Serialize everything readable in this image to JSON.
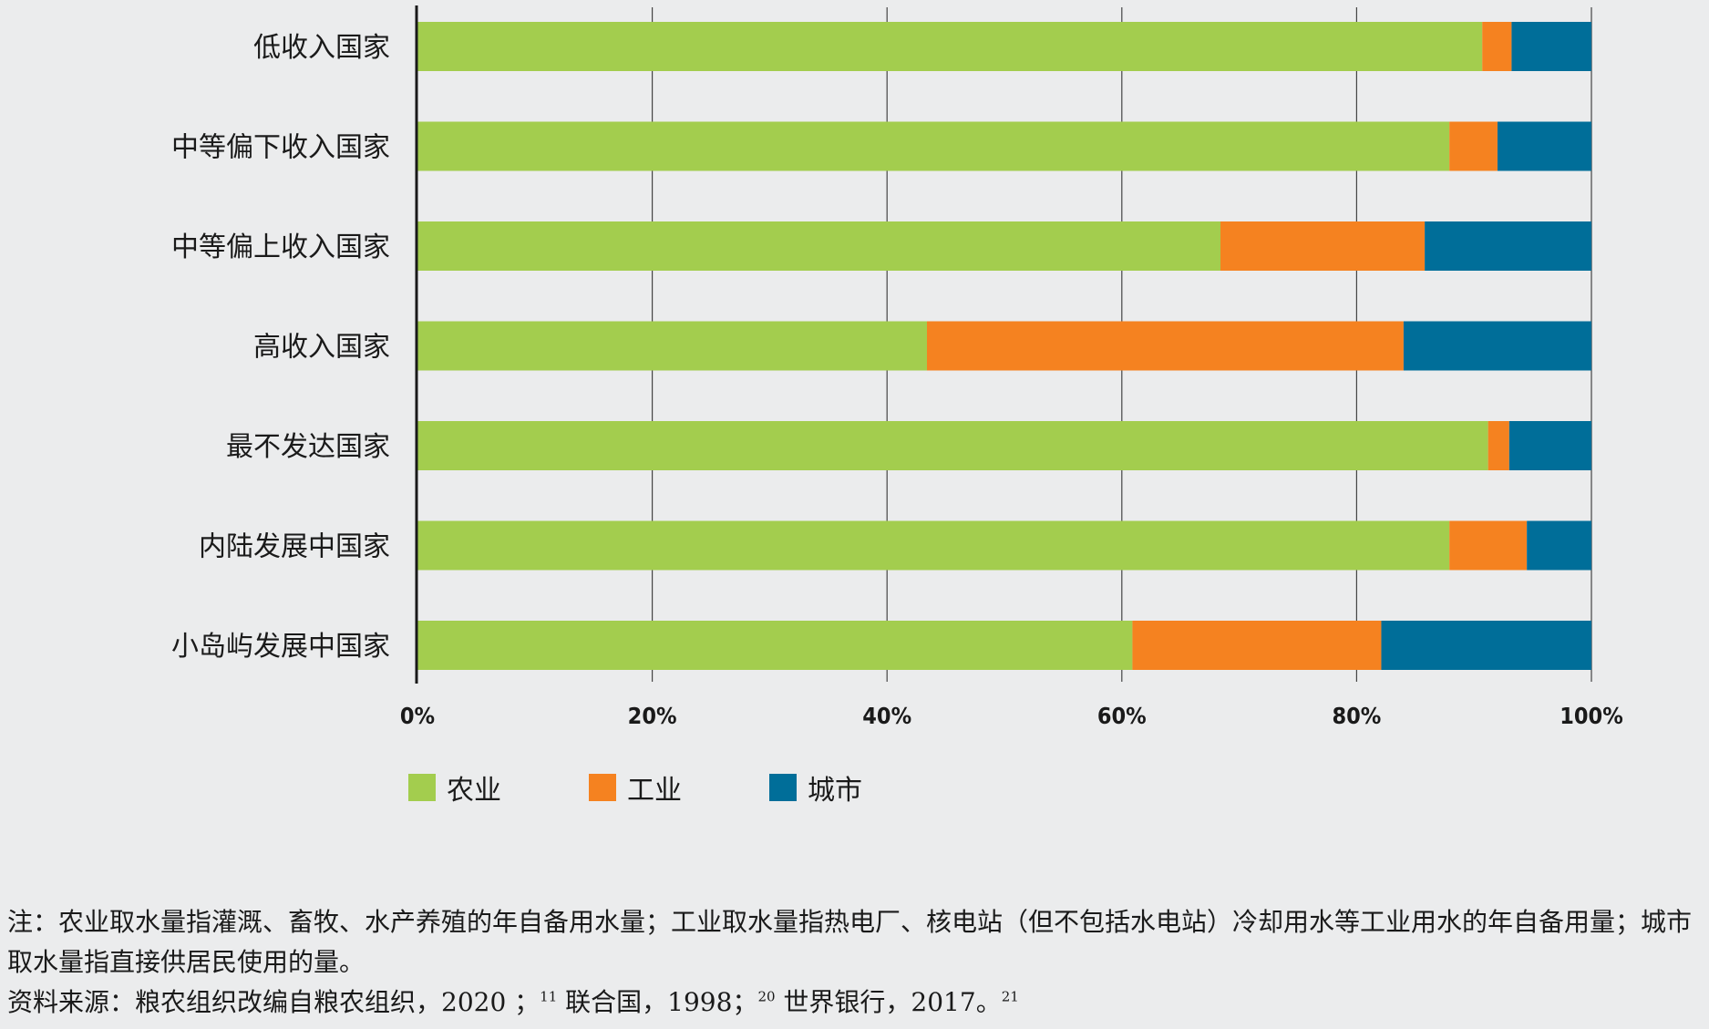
{
  "chart_data": {
    "type": "bar",
    "orientation": "horizontal",
    "stacked": true,
    "categories": [
      "低收入国家",
      "中等偏下收入国家",
      "中等偏上收入国家",
      "高收入国家",
      "最不发达国家",
      "内陆发展中国家",
      "小岛屿发展中国家"
    ],
    "series": [
      {
        "name": "农业",
        "color": "#a3cd4e",
        "values": [
          90.7,
          87.9,
          68.4,
          43.4,
          91.2,
          87.9,
          60.9
        ]
      },
      {
        "name": "工业",
        "color": "#f58220",
        "values": [
          2.5,
          4.1,
          17.4,
          40.6,
          1.8,
          6.6,
          21.2
        ]
      },
      {
        "name": "城市",
        "color": "#006e99",
        "values": [
          6.8,
          8.0,
          14.2,
          16.0,
          7.0,
          5.5,
          17.9
        ]
      }
    ],
    "xticks": [
      "0%",
      "20%",
      "40%",
      "60%",
      "80%",
      "100%"
    ],
    "xlim": [
      0,
      100
    ],
    "grid": true,
    "legend_position": "bottom-left"
  },
  "notes": {
    "note": "注：农业取水量指灌溉、畜牧、水产养殖的年自备用水量；工业取水量指热电厂、核电站（但不包括水电站）冷却用水等工业用水的年自备用量；城市取水量指直接供居民使用的量。",
    "source_prefix": "资料来源：粮农组织改编自粮农组织，2020 ；",
    "source_ref1": "11",
    "source_mid1": " 联合国，1998；",
    "source_ref2": "20",
    "source_mid2": " 世界银行，2017。",
    "source_ref3": "21"
  }
}
